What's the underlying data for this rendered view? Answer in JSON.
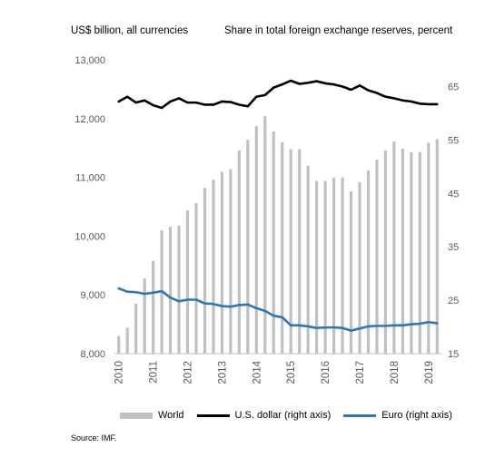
{
  "chart_data": {
    "type": "bar",
    "left_axis_label": "US$ billion, all currencies",
    "right_axis_label": "Share in total foreign exchange reserves, percent",
    "ylim_left": [
      8000,
      13000
    ],
    "yticks_left": [
      "8,000",
      "9,000",
      "10,000",
      "11,000",
      "12,000",
      "13,000"
    ],
    "ylim_right": [
      15,
      70
    ],
    "yticks_right": [
      "15",
      "25",
      "35",
      "45",
      "55",
      "65"
    ],
    "x_labels": [
      "2010",
      "2011",
      "2012",
      "2013",
      "2014",
      "2015",
      "2016",
      "2017",
      "2018",
      "2019"
    ],
    "quarters": [
      "2010Q1",
      "2010Q2",
      "2010Q3",
      "2010Q4",
      "2011Q1",
      "2011Q2",
      "2011Q3",
      "2011Q4",
      "2012Q1",
      "2012Q2",
      "2012Q3",
      "2012Q4",
      "2013Q1",
      "2013Q2",
      "2013Q3",
      "2013Q4",
      "2014Q1",
      "2014Q2",
      "2014Q3",
      "2014Q4",
      "2015Q1",
      "2015Q2",
      "2015Q3",
      "2015Q4",
      "2016Q1",
      "2016Q2",
      "2016Q3",
      "2016Q4",
      "2017Q1",
      "2017Q2",
      "2017Q3",
      "2017Q4",
      "2018Q1",
      "2018Q2",
      "2018Q3",
      "2018Q4",
      "2019Q1",
      "2019Q2"
    ],
    "series": [
      {
        "name": "World",
        "kind": "bar",
        "axis": "left",
        "color": "#c0c0c0",
        "values": [
          8300,
          8440,
          8850,
          9280,
          9580,
          10100,
          10160,
          10180,
          10440,
          10560,
          10820,
          10960,
          11100,
          11140,
          11460,
          11640,
          11870,
          12040,
          11780,
          11600,
          11480,
          11480,
          11200,
          10940,
          10940,
          10990,
          11000,
          10760,
          10920,
          11120,
          11300,
          11460,
          11610,
          11490,
          11430,
          11430,
          11590,
          11650
        ]
      },
      {
        "name": "U.S. dollar (right axis)",
        "kind": "line",
        "axis": "right",
        "color": "#000000",
        "values": [
          62.2,
          63.1,
          62.0,
          62.4,
          61.5,
          61.0,
          62.2,
          62.8,
          62.0,
          62.0,
          61.6,
          61.6,
          62.2,
          62.1,
          61.6,
          61.3,
          63.1,
          63.4,
          64.8,
          65.4,
          66.1,
          65.5,
          65.7,
          66.0,
          65.6,
          65.4,
          65.0,
          64.4,
          65.2,
          64.3,
          63.8,
          63.1,
          62.8,
          62.4,
          62.2,
          61.8,
          61.7,
          61.7
        ]
      },
      {
        "name": "Euro (right axis)",
        "kind": "line",
        "axis": "right",
        "color": "#2e75b6",
        "values": [
          27.2,
          26.6,
          26.5,
          26.2,
          26.4,
          26.7,
          25.5,
          24.8,
          25.1,
          25.1,
          24.4,
          24.3,
          23.9,
          23.8,
          24.1,
          24.2,
          23.5,
          23.0,
          22.1,
          21.8,
          20.3,
          20.3,
          20.1,
          19.8,
          19.9,
          19.9,
          19.8,
          19.3,
          19.7,
          20.1,
          20.2,
          20.2,
          20.3,
          20.3,
          20.5,
          20.6,
          20.9,
          20.7
        ]
      }
    ]
  },
  "source": "Source: IMF."
}
